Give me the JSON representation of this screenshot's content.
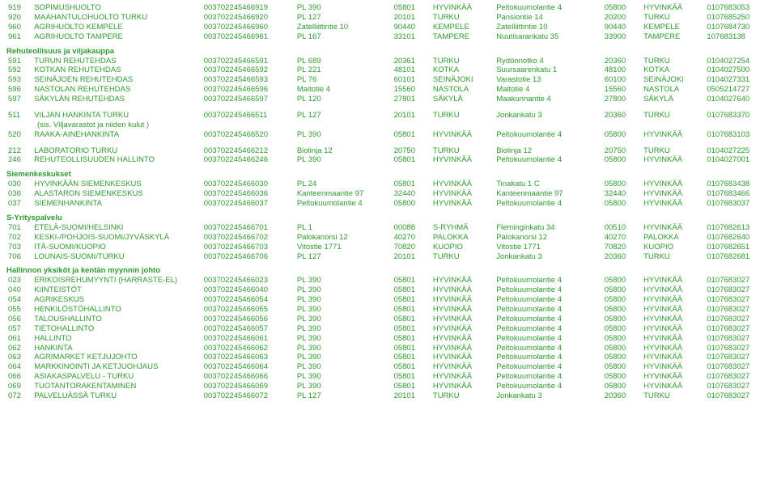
{
  "groups": [
    {
      "title": null,
      "note": null,
      "rows": [
        [
          "919",
          "SOPIMUSHUOLTO",
          "003702245466919",
          "PL 390",
          "05801",
          "HYVINKÄÄ",
          "Peltokuumolantie 4",
          "05800",
          "HYVINKÄÄ",
          "0107683053"
        ],
        [
          "920",
          "MAAHANTULOHUOLTO TURKU",
          "003702245466920",
          "PL 127",
          "20101",
          "TURKU",
          "Pansiontie 14",
          "20200",
          "TURKU",
          "0107685250"
        ],
        [
          "960",
          "AGRIHUOLTO KEMPELE",
          "003702245466960",
          "Zatelliittintie 10",
          "90440",
          "KEMPELE",
          "Zatelliittintie 10",
          "90440",
          "KEMPELE",
          "0107684730"
        ],
        [
          "961",
          "AGRIHUOLTO TAMPERE",
          "003702245466961",
          "PL 167",
          "33101",
          "TAMPERE",
          "Nuutisarankatu 35",
          "33900",
          "TAMPERE",
          "107683138"
        ]
      ]
    },
    {
      "title": "Rehuteollisuus ja viljakauppa",
      "note": null,
      "rows": [
        [
          "591",
          "TURUN REHUTEHDAS",
          "003702245466591",
          "PL 689",
          "20361",
          "TURKU",
          "Rydönnotko 4",
          "20360",
          "TURKU",
          "0104027254"
        ],
        [
          "592",
          "KOTKAN REHUTEHDAS",
          "003702245466592",
          "PL 221",
          "48101",
          "KOTKA",
          "Suursaarenkatu 1",
          "48100",
          "KOTKA",
          "0104027500"
        ],
        [
          "593",
          "SEINÄJOEN REHUTEHDAS",
          "003702245466593",
          "PL 76",
          "60101",
          "SEINÄJOKI",
          "Varastotie 13",
          "60100",
          "SEINÄJOKI",
          "0104027331"
        ],
        [
          "596",
          "NASTOLAN REHUTEHDAS",
          "003702245466596",
          "Maitotie 4",
          "15560",
          "NASTOLA",
          "Maitotie 4",
          "15560",
          "NASTOLA",
          "0505214727"
        ],
        [
          "597",
          "SÄKYLÄN REHUTEHDAS",
          "003702245466597",
          "PL 120",
          "27801",
          "SÄKYLÄ",
          "Maakunnantie 4",
          "27800",
          "SÄKYLÄ",
          "0104027640"
        ]
      ]
    },
    {
      "title": null,
      "note": "(sis. Viljavarastot ja niiden kulut )",
      "rows": [
        [
          "511",
          "VILJAN HANKINTA TURKU",
          "003702245466511",
          "PL 127",
          "20101",
          "TURKU",
          "Jonkankatu 3",
          "20360",
          "TURKU",
          "0107683370"
        ],
        [
          "520",
          "RAAKA-AINEHANKINTA",
          "003702245466520",
          "PL 390",
          "05801",
          "HYVINKÄÄ",
          "Peltokuumolantie 4",
          "05800",
          "HYVINKÄÄ",
          "0107683103"
        ]
      ]
    },
    {
      "title": null,
      "note": null,
      "rows": [
        [
          "212",
          "LABORATORIO TURKU",
          "003702245466212",
          "Biolinja 12",
          "20750",
          "TURKU",
          "Biolinja 12",
          "20750",
          "TURKU",
          "0104027225"
        ],
        [
          "246",
          "REHUTEOLLISUUDEN HALLINTO",
          "003702245466246",
          "PL 390",
          "05801",
          "HYVINKÄÄ",
          "Peltokuumolantie 4",
          "05800",
          "HYVINKÄÄ",
          "0104027001"
        ]
      ]
    },
    {
      "title": "Siemenkeskukset",
      "note": null,
      "rows": [
        [
          "030",
          "HYVINKÄÄN SIEMENKESKUS",
          "003702245466030",
          "PL 24",
          "05801",
          "HYVINKÄÄ",
          "Tinakatu 1 C",
          "05800",
          "HYVINKÄÄ",
          "0107683438"
        ],
        [
          "036",
          "ALASTARON SIEMENKESKUS",
          "003702245466036",
          "Kanteenmaantie 97",
          "32440",
          "HYVINKÄÄ",
          "Kanteenmaantie 97",
          "32440",
          "HYVINKÄÄ",
          "0107683466"
        ],
        [
          "037",
          "SIEMENHANKINTA",
          "003702245466037",
          "Peltokuumolantie 4",
          "05800",
          "HYVINKÄÄ",
          "Peltokuumolantie 4",
          "05800",
          "HYVINKÄÄ",
          "0107683037"
        ]
      ]
    },
    {
      "title": "S-Yrityspalvelu",
      "note": null,
      "rows": [
        [
          "701",
          "ETELÄ-SUOMI/HELSINKI",
          "003702245466701",
          "PL 1",
          "00088",
          "S-RYHMÄ",
          "Fleminginkatu 34",
          "00510",
          "HYVINKÄÄ",
          "0107682613"
        ],
        [
          "702",
          "KESKI-/POHJOIS-SUOMI/JYVÄSKYLÄ",
          "003702245466702",
          "Palokanorsi 12",
          "40270",
          "PALOKKA",
          "Palokanorsi 12",
          "40270",
          "PALOKKA",
          "0107682640"
        ],
        [
          "703",
          "ITÄ-SUOMI/KUOPIO",
          "003702245466703",
          "Vitostie 1771",
          "70820",
          "KUOPIO",
          "Vitostie 1771",
          "70820",
          "KUOPIO",
          "0107682651"
        ],
        [
          "706",
          "LOUNAIS-SUOMI/TURKU",
          "003702245466706",
          "PL 127",
          "20101",
          "TURKU",
          "Jonkankatu 3",
          "20360",
          "TURKU",
          "0107682681"
        ]
      ]
    },
    {
      "title": "Hallinnon yksiköt ja kentän myynnin johto",
      "note": null,
      "rows": [
        [
          "023",
          "ERIKOISREHUMYYNTI (HARRASTE-EL)",
          "003702245466023",
          "PL 390",
          "05801",
          "HYVINKÄÄ",
          "Peltokuumolantie 4",
          "05800",
          "HYVINKÄÄ",
          "0107683027"
        ],
        [
          "040",
          "KIINTEISTÖT",
          "003702245466040",
          "PL 390",
          "05801",
          "HYVINKÄÄ",
          "Peltokuumolantie 4",
          "05800",
          "HYVINKÄÄ",
          "0107683027"
        ],
        [
          "054",
          "AGRIKESKUS",
          "003702245466054",
          "PL 390",
          "05801",
          "HYVINKÄÄ",
          "Peltokuumolantie 4",
          "05800",
          "HYVINKÄÄ",
          "0107683027"
        ],
        [
          "055",
          "HENKILÖSTÖHALLINTO",
          "003702245466055",
          "PL 390",
          "05801",
          "HYVINKÄÄ",
          "Peltokuumolantie 4",
          "05800",
          "HYVINKÄÄ",
          "0107683027"
        ],
        [
          "056",
          "TALOUSHALLINTO",
          "003702245466056",
          "PL 390",
          "05801",
          "HYVINKÄÄ",
          "Peltokuumolantie 4",
          "05800",
          "HYVINKÄÄ",
          "0107683027"
        ],
        [
          "057",
          "TIETOHALLINTO",
          "003702245466057",
          "PL 390",
          "05801",
          "HYVINKÄÄ",
          "Peltokuumolantie 4",
          "05800",
          "HYVINKÄÄ",
          "0107683027"
        ],
        [
          "061",
          "HALLINTO",
          "003702245466061",
          "PL 390",
          "05801",
          "HYVINKÄÄ",
          "Peltokuumolantie 4",
          "05800",
          "HYVINKÄÄ",
          "0107683027"
        ],
        [
          "062",
          "HANKINTA",
          "003702245466062",
          "PL 390",
          "05801",
          "HYVINKÄÄ",
          "Peltokuumolantie 4",
          "05800",
          "HYVINKÄÄ",
          "0107683027"
        ],
        [
          "063",
          "AGRIMARKET KETJUJOHTO",
          "003702245466063",
          "PL 390",
          "05801",
          "HYVINKÄÄ",
          "Peltokuumolantie 4",
          "05800",
          "HYVINKÄÄ",
          "0107683027"
        ],
        [
          "064",
          "MARKKINOINTI JA KETJUOHJAUS",
          "003702245466064",
          "PL 390",
          "05801",
          "HYVINKÄÄ",
          "Peltokuumolantie 4",
          "05800",
          "HYVINKÄÄ",
          "0107683027"
        ],
        [
          "066",
          "ASIAKASPALVELU - TURKU",
          "003702245466066",
          "PL 390",
          "05801",
          "HYVINKÄÄ",
          "Peltokuumolantie 4",
          "05800",
          "HYVINKÄÄ",
          "0107683027"
        ],
        [
          "069",
          "TUOTANTORAKENTAMINEN",
          "003702245466069",
          "PL 390",
          "05801",
          "HYVINKÄÄ",
          "Peltokuumolantie 4",
          "05800",
          "HYVINKÄÄ",
          "0107683027"
        ],
        [
          "072",
          "PALVELUÄSSÄ TURKU",
          "003702245466072",
          "PL 127",
          "20101",
          "TURKU",
          "Jonkankatu 3",
          "20360",
          "TURKU",
          "0107683027"
        ]
      ]
    }
  ]
}
